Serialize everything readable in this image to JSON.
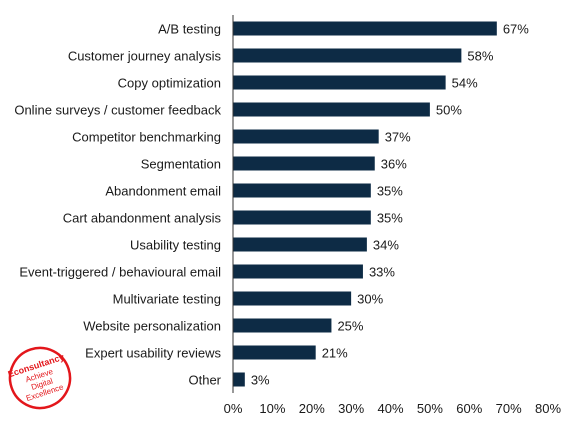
{
  "chart_data": {
    "type": "bar",
    "orientation": "horizontal",
    "categories": [
      "A/B testing",
      "Customer journey analysis",
      "Copy optimization",
      "Online surveys / customer feedback",
      "Competitor benchmarking",
      "Segmentation",
      "Abandonment email",
      "Cart abandonment analysis",
      "Usability testing",
      "Event-triggered / behavioural email",
      "Multivariate testing",
      "Website personalization",
      "Expert usability reviews",
      "Other"
    ],
    "values": [
      67,
      58,
      54,
      50,
      37,
      36,
      35,
      35,
      34,
      33,
      30,
      25,
      21,
      3
    ],
    "value_labels": [
      "67%",
      "58%",
      "54%",
      "50%",
      "37%",
      "36%",
      "35%",
      "35%",
      "34%",
      "33%",
      "30%",
      "25%",
      "21%",
      "3%"
    ],
    "xlim": [
      0,
      80
    ],
    "xticks": [
      0,
      10,
      20,
      30,
      40,
      50,
      60,
      70,
      80
    ],
    "xtick_labels": [
      "0%",
      "10%",
      "20%",
      "30%",
      "40%",
      "50%",
      "60%",
      "70%",
      "80%"
    ],
    "bar_color": "#0d2b45",
    "grid": false,
    "legend": "none"
  },
  "logo": {
    "lines": [
      "Econsultancy",
      "Achieve",
      "Digital",
      "Excellence"
    ],
    "color": "#e3161b"
  }
}
